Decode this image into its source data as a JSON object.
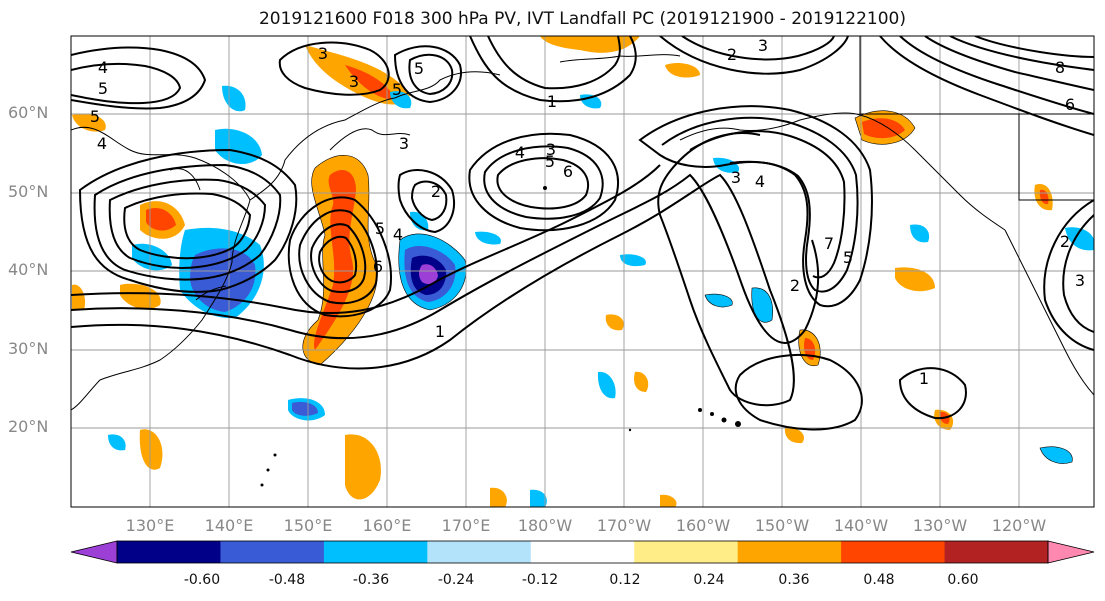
{
  "title": "2019121600 F018 300 hPa PV, IVT Landfall PC (2019121900 - 2019122100)",
  "latitude_labels": [
    "60°N",
    "50°N",
    "40°N",
    "30°N",
    "20°N"
  ],
  "longitude_labels": [
    "130°E",
    "140°E",
    "150°E",
    "160°E",
    "170°E",
    "180°W",
    "170°W",
    "160°W",
    "150°W",
    "140°W",
    "130°W",
    "120°W"
  ],
  "contour_labels": [
    "4",
    "5",
    "5",
    "4",
    "3",
    "3",
    "5",
    "5",
    "3",
    "2",
    "3",
    "1",
    "4",
    "3",
    "5",
    "6",
    "2",
    "5",
    "4",
    "6",
    "7",
    "5",
    "2",
    "1",
    "1",
    "8",
    "6",
    "4",
    "3",
    "2",
    "3"
  ],
  "colorbar": {
    "ticks": [
      "-0.60",
      "-0.48",
      "-0.36",
      "-0.24",
      "-0.12",
      "0.12",
      "0.24",
      "0.36",
      "0.48",
      "0.60"
    ],
    "colors": [
      "#9c3fd6",
      "#000088",
      "#3a5bd6",
      "#00bfff",
      "#b3e3fb",
      "#ffffff",
      "#ffee88",
      "#ffa500",
      "#ff4500",
      "#b22222",
      "#ff88b0"
    ]
  }
}
